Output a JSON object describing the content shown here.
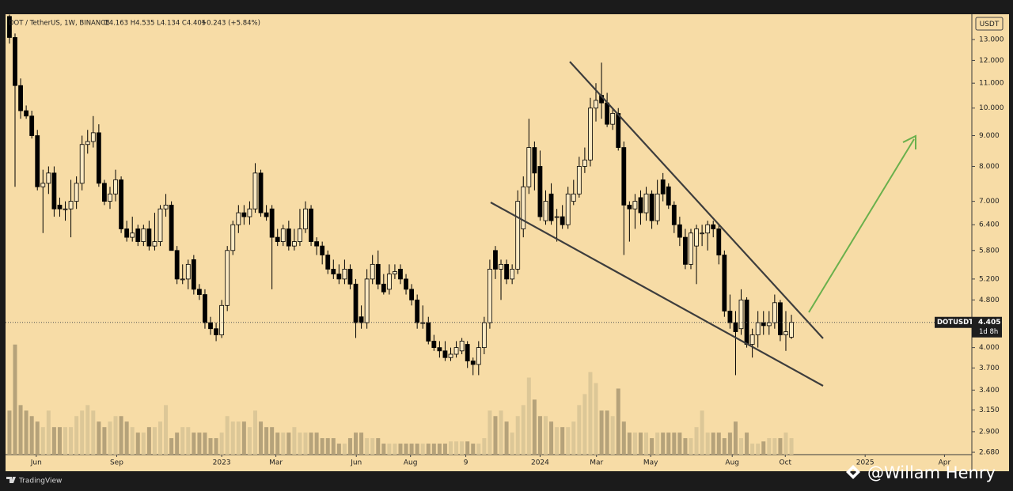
{
  "chart_data": {
    "type": "candlestick",
    "header": {
      "symbol": "DOT / TetherUS, 1W, BINANCE",
      "ohlc_legend": "O4.163 H4.535 L4.134 C4.405",
      "change": "+0.243 (+5.84%)"
    },
    "currency": "USDT",
    "symbol_label": "DOTUSDT",
    "countdown": "1d 8h",
    "brand": "TradingView",
    "watermark": "@Willam Henry",
    "log_scale": true,
    "grid": false,
    "colors": {
      "up_body": "#fbe9c2",
      "down_body": "#000000",
      "outline": "#000000",
      "volume_up": "#dcc797",
      "volume_down": "#b5a27a"
    },
    "ylim": [
      2.656,
      14.32
    ],
    "yticks": [
      {
        "value": 13,
        "label": "13.000"
      },
      {
        "value": 12,
        "label": "12.000"
      },
      {
        "value": 11,
        "label": "11.000"
      },
      {
        "value": 10,
        "label": "10.000"
      },
      {
        "value": 9,
        "label": "9.000"
      },
      {
        "value": 8,
        "label": "8.000"
      },
      {
        "value": 7,
        "label": "7.000"
      },
      {
        "value": 6.4,
        "label": "6.400"
      },
      {
        "value": 5.8,
        "label": "5.800"
      },
      {
        "value": 5.2,
        "label": "5.200"
      },
      {
        "value": 4.8,
        "label": "4.800"
      },
      {
        "value": 4,
        "label": "4.000"
      },
      {
        "value": 3.7,
        "label": "3.700"
      },
      {
        "value": 3.4,
        "label": "3.400"
      },
      {
        "value": 3.15,
        "label": "3.150"
      },
      {
        "value": 2.9,
        "label": "2.900"
      },
      {
        "value": 2.68,
        "label": "2.680"
      }
    ],
    "xlim": [
      -0.7,
      172.3
    ],
    "xticks": [
      {
        "value": 4.8,
        "label": "Jun"
      },
      {
        "value": 19.2,
        "label": "Sep"
      },
      {
        "value": 38.0,
        "label": "2023"
      },
      {
        "value": 47.7,
        "label": "Mar"
      },
      {
        "value": 62.1,
        "label": "Jun"
      },
      {
        "value": 71.8,
        "label": "Aug"
      },
      {
        "value": 81.7,
        "label": "9"
      },
      {
        "value": 95.0,
        "label": "2024"
      },
      {
        "value": 105.1,
        "label": "Mar"
      },
      {
        "value": 114.8,
        "label": "May"
      },
      {
        "value": 129.4,
        "label": "Aug"
      },
      {
        "value": 138.9,
        "label": "Oct"
      },
      {
        "value": 153.2,
        "label": "2025"
      },
      {
        "value": 167.4,
        "label": "Apr"
      }
    ],
    "ohlc": [
      [
        14.2,
        14.3,
        12.8,
        13.1
      ],
      [
        13.1,
        13.3,
        7.4,
        10.9
      ],
      [
        10.9,
        11.2,
        9.6,
        9.9
      ],
      [
        9.9,
        10.1,
        9.6,
        9.7
      ],
      [
        9.7,
        9.9,
        8.9,
        9.0
      ],
      [
        9.0,
        9.2,
        7.3,
        7.4
      ],
      [
        7.4,
        7.9,
        6.2,
        7.5
      ],
      [
        7.5,
        8.0,
        7.2,
        7.8
      ],
      [
        7.8,
        8.0,
        6.6,
        6.8
      ],
      [
        6.9,
        7.1,
        6.6,
        6.8
      ],
      [
        6.8,
        7.0,
        6.5,
        6.8
      ],
      [
        6.8,
        7.6,
        6.1,
        7.0
      ],
      [
        7.0,
        7.7,
        6.8,
        7.5
      ],
      [
        7.5,
        9.0,
        7.3,
        8.7
      ],
      [
        8.7,
        9.2,
        8.4,
        8.8
      ],
      [
        8.8,
        9.7,
        8.6,
        9.1
      ],
      [
        9.1,
        9.4,
        7.4,
        7.5
      ],
      [
        7.5,
        7.6,
        6.9,
        7.0
      ],
      [
        7.0,
        7.4,
        6.8,
        7.2
      ],
      [
        7.2,
        7.9,
        7.0,
        7.6
      ],
      [
        7.6,
        7.7,
        6.2,
        6.3
      ],
      [
        6.3,
        6.5,
        6.0,
        6.1
      ],
      [
        6.1,
        6.6,
        6.0,
        6.2
      ],
      [
        6.3,
        6.4,
        5.9,
        6.0
      ],
      [
        6.0,
        6.4,
        5.9,
        6.3
      ],
      [
        6.3,
        6.5,
        5.8,
        5.9
      ],
      [
        5.9,
        6.7,
        5.8,
        6.0
      ],
      [
        6.0,
        6.9,
        5.9,
        6.8
      ],
      [
        6.8,
        7.2,
        6.6,
        6.9
      ],
      [
        6.9,
        7.0,
        5.8,
        5.8
      ],
      [
        5.8,
        5.9,
        5.1,
        5.2
      ],
      [
        5.2,
        5.5,
        5.1,
        5.2
      ],
      [
        5.2,
        5.6,
        5.0,
        5.5
      ],
      [
        5.6,
        5.7,
        4.9,
        5.0
      ],
      [
        5.0,
        5.1,
        4.8,
        4.9
      ],
      [
        4.9,
        5.0,
        4.3,
        4.4
      ],
      [
        4.4,
        4.5,
        4.2,
        4.3
      ],
      [
        4.3,
        4.4,
        4.1,
        4.2
      ],
      [
        4.2,
        4.8,
        4.15,
        4.7
      ],
      [
        4.7,
        5.9,
        4.6,
        5.8
      ],
      [
        5.8,
        6.5,
        5.7,
        6.4
      ],
      [
        6.4,
        6.9,
        6.2,
        6.7
      ],
      [
        6.7,
        6.9,
        6.4,
        6.6
      ],
      [
        6.6,
        7.0,
        6.4,
        6.8
      ],
      [
        6.8,
        8.1,
        6.7,
        7.8
      ],
      [
        7.8,
        7.9,
        6.6,
        6.7
      ],
      [
        6.7,
        6.9,
        6.5,
        6.6
      ],
      [
        6.8,
        6.9,
        5.0,
        6.1
      ],
      [
        6.1,
        6.3,
        5.9,
        6.0
      ],
      [
        6.0,
        6.4,
        5.9,
        6.3
      ],
      [
        6.3,
        6.5,
        5.8,
        5.9
      ],
      [
        5.9,
        6.3,
        5.8,
        6.0
      ],
      [
        6.0,
        6.8,
        5.9,
        6.3
      ],
      [
        6.3,
        7.0,
        6.2,
        6.8
      ],
      [
        6.8,
        6.9,
        5.9,
        6.0
      ],
      [
        6.0,
        6.1,
        5.7,
        5.9
      ],
      [
        5.9,
        6.0,
        5.5,
        5.7
      ],
      [
        5.7,
        5.8,
        5.3,
        5.4
      ],
      [
        5.4,
        5.6,
        5.2,
        5.3
      ],
      [
        5.3,
        5.5,
        5.1,
        5.2
      ],
      [
        5.2,
        5.6,
        5.1,
        5.4
      ],
      [
        5.4,
        5.5,
        5.0,
        5.1
      ],
      [
        5.1,
        5.2,
        4.15,
        4.4
      ],
      [
        4.5,
        4.7,
        4.3,
        4.4
      ],
      [
        4.4,
        5.4,
        4.3,
        5.2
      ],
      [
        5.2,
        5.7,
        5.1,
        5.5
      ],
      [
        5.5,
        5.8,
        5.0,
        5.1
      ],
      [
        5.1,
        5.3,
        4.9,
        4.95
      ],
      [
        5.0,
        5.5,
        4.9,
        5.3
      ],
      [
        5.3,
        5.5,
        5.2,
        5.35
      ],
      [
        5.4,
        5.5,
        5.1,
        5.2
      ],
      [
        5.2,
        5.3,
        4.9,
        5.0
      ],
      [
        5.0,
        5.1,
        4.7,
        4.8
      ],
      [
        4.8,
        4.9,
        4.3,
        4.4
      ],
      [
        4.4,
        4.7,
        4.3,
        4.4
      ],
      [
        4.4,
        4.5,
        4.05,
        4.1
      ],
      [
        4.1,
        4.2,
        3.95,
        4.0
      ],
      [
        4.0,
        4.1,
        3.85,
        3.95
      ],
      [
        3.95,
        4.1,
        3.8,
        3.85
      ],
      [
        3.85,
        4.0,
        3.8,
        3.9
      ],
      [
        3.9,
        4.1,
        3.85,
        4.0
      ],
      [
        3.95,
        4.15,
        3.9,
        4.1
      ],
      [
        4.05,
        4.1,
        3.7,
        3.8
      ],
      [
        3.8,
        3.85,
        3.6,
        3.75
      ],
      [
        3.75,
        4.1,
        3.6,
        4.0
      ],
      [
        4.0,
        4.5,
        3.9,
        4.4
      ],
      [
        4.4,
        5.6,
        4.3,
        5.4
      ],
      [
        5.8,
        5.9,
        5.2,
        5.4
      ],
      [
        5.4,
        5.6,
        4.8,
        5.5
      ],
      [
        5.5,
        5.6,
        5.1,
        5.2
      ],
      [
        5.2,
        5.5,
        5.1,
        5.4
      ],
      [
        5.4,
        7.3,
        5.3,
        7.0
      ],
      [
        6.3,
        7.7,
        6.1,
        7.4
      ],
      [
        7.4,
        9.6,
        7.2,
        8.6
      ],
      [
        8.6,
        8.8,
        7.3,
        7.8
      ],
      [
        8.0,
        8.5,
        6.5,
        6.6
      ],
      [
        6.5,
        7.3,
        6.4,
        7.0
      ],
      [
        7.2,
        7.5,
        6.4,
        6.5
      ],
      [
        6.6,
        6.8,
        6.0,
        6.6
      ],
      [
        6.6,
        6.9,
        6.3,
        6.4
      ],
      [
        6.4,
        7.4,
        6.3,
        7.2
      ],
      [
        7.0,
        7.6,
        6.9,
        7.2
      ],
      [
        7.2,
        8.3,
        7.1,
        8.0
      ],
      [
        8.0,
        8.6,
        7.8,
        8.2
      ],
      [
        8.2,
        10.4,
        8.0,
        10.0
      ],
      [
        10.0,
        11.0,
        9.5,
        10.3
      ],
      [
        10.5,
        11.9,
        9.6,
        10.2
      ],
      [
        10.2,
        10.6,
        9.3,
        9.4
      ],
      [
        9.4,
        10.0,
        9.2,
        9.8
      ],
      [
        9.8,
        10.0,
        8.5,
        8.6
      ],
      [
        8.6,
        8.8,
        5.7,
        6.9
      ],
      [
        6.9,
        7.0,
        6.0,
        6.8
      ],
      [
        6.8,
        7.2,
        6.3,
        7.0
      ],
      [
        7.1,
        7.3,
        6.4,
        6.7
      ],
      [
        6.7,
        7.4,
        6.5,
        7.2
      ],
      [
        7.2,
        7.3,
        6.3,
        6.5
      ],
      [
        6.5,
        7.6,
        6.4,
        7.2
      ],
      [
        7.6,
        7.8,
        7.0,
        7.2
      ],
      [
        7.4,
        7.5,
        6.8,
        6.9
      ],
      [
        6.9,
        7.0,
        6.2,
        6.4
      ],
      [
        6.4,
        6.6,
        5.9,
        6.1
      ],
      [
        6.1,
        6.3,
        5.4,
        5.5
      ],
      [
        5.5,
        6.3,
        5.4,
        6.2
      ],
      [
        5.9,
        6.4,
        5.1,
        6.3
      ],
      [
        6.2,
        6.4,
        5.9,
        6.2
      ],
      [
        6.2,
        6.5,
        5.8,
        6.4
      ],
      [
        6.4,
        6.5,
        6.1,
        6.3
      ],
      [
        6.3,
        6.4,
        5.5,
        5.7
      ],
      [
        5.7,
        5.8,
        4.5,
        4.6
      ],
      [
        4.6,
        4.9,
        4.3,
        4.4
      ],
      [
        4.4,
        4.6,
        3.6,
        4.25
      ],
      [
        4.3,
        5.0,
        4.2,
        4.8
      ],
      [
        4.8,
        4.85,
        4.0,
        4.05
      ],
      [
        4.05,
        4.3,
        3.85,
        4.2
      ],
      [
        4.2,
        4.6,
        4.0,
        4.4
      ],
      [
        4.4,
        4.6,
        4.2,
        4.35
      ],
      [
        4.35,
        4.6,
        4.2,
        4.4
      ],
      [
        4.4,
        4.9,
        4.3,
        4.75
      ],
      [
        4.75,
        4.8,
        4.1,
        4.2
      ],
      [
        4.2,
        4.6,
        3.95,
        4.25
      ],
      [
        4.163,
        4.535,
        4.134,
        4.405
      ]
    ],
    "volume": [
      40,
      100,
      45,
      40,
      35,
      30,
      25,
      40,
      25,
      25,
      25,
      25,
      35,
      40,
      45,
      40,
      30,
      25,
      30,
      35,
      35,
      30,
      25,
      20,
      20,
      25,
      25,
      30,
      45,
      15,
      20,
      25,
      25,
      20,
      20,
      20,
      15,
      15,
      20,
      35,
      30,
      30,
      30,
      25,
      40,
      30,
      25,
      25,
      20,
      20,
      20,
      25,
      20,
      20,
      20,
      20,
      15,
      15,
      15,
      10,
      10,
      15,
      20,
      20,
      15,
      15,
      15,
      10,
      10,
      10,
      10,
      10,
      10,
      10,
      10,
      10,
      10,
      10,
      10,
      12,
      12,
      12,
      12,
      10,
      10,
      15,
      40,
      35,
      40,
      30,
      20,
      35,
      45,
      70,
      50,
      35,
      35,
      30,
      25,
      25,
      25,
      30,
      45,
      55,
      75,
      65,
      40,
      40,
      35,
      60,
      30,
      20,
      20,
      20,
      20,
      15,
      20,
      20,
      20,
      20,
      20,
      15,
      15,
      25,
      40,
      20,
      20,
      20,
      15,
      20,
      30,
      15,
      20,
      10,
      10,
      12,
      15,
      15,
      15,
      20,
      15
    ]
  }
}
